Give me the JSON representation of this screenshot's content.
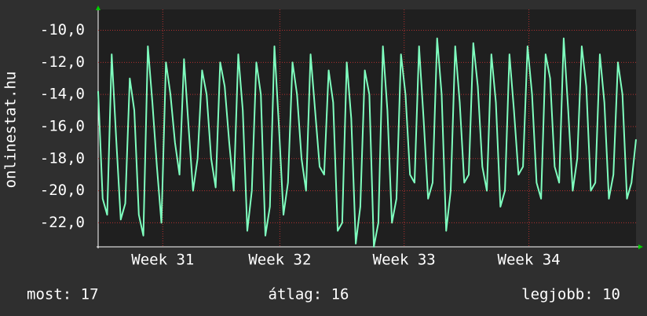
{
  "chart_data": {
    "type": "line",
    "ylabel": "onlinestat.hu",
    "color": "#7fffbf",
    "grid": true,
    "ylim": [
      -23.5,
      -8.7
    ],
    "yticks": [
      {
        "value": -10,
        "label": "-10,0"
      },
      {
        "value": -12,
        "label": "-12,0"
      },
      {
        "value": -14,
        "label": "-14,0"
      },
      {
        "value": -16,
        "label": "-16,0"
      },
      {
        "value": -18,
        "label": "-18,0"
      },
      {
        "value": -20,
        "label": "-20,0"
      },
      {
        "value": -22,
        "label": "-22,0"
      }
    ],
    "xlim": [
      0,
      119
    ],
    "xticks": [
      {
        "value": 14.3,
        "label": "Week 31"
      },
      {
        "value": 40.2,
        "label": "Week 32"
      },
      {
        "value": 67.7,
        "label": "Week 33"
      },
      {
        "value": 95.3,
        "label": "Week 34"
      }
    ],
    "values": [
      -13.8,
      -20.5,
      -21.5,
      -11.5,
      -16.8,
      -21.8,
      -20.8,
      -13.0,
      -15.0,
      -21.5,
      -22.8,
      -11.0,
      -14.5,
      -18.5,
      -22.0,
      -12.0,
      -14.0,
      -17.0,
      -19.0,
      -11.8,
      -16.0,
      -20.0,
      -18.0,
      -12.5,
      -14.0,
      -18.0,
      -19.8,
      -12.0,
      -13.5,
      -17.0,
      -20.0,
      -11.5,
      -15.0,
      -22.5,
      -20.0,
      -12.0,
      -14.0,
      -22.8,
      -21.0,
      -11.0,
      -16.0,
      -21.5,
      -19.5,
      -12.0,
      -14.0,
      -18.0,
      -20.0,
      -11.5,
      -15.0,
      -18.5,
      -19.0,
      -12.5,
      -14.5,
      -22.5,
      -22.0,
      -12.0,
      -15.5,
      -23.3,
      -21.0,
      -12.5,
      -14.0,
      -23.5,
      -22.0,
      -11.0,
      -15.0,
      -22.0,
      -20.5,
      -11.5,
      -14.0,
      -19.0,
      -19.5,
      -11.0,
      -15.5,
      -20.5,
      -19.5,
      -10.5,
      -14.0,
      -22.5,
      -20.0,
      -11.0,
      -14.5,
      -19.5,
      -19.0,
      -10.8,
      -13.5,
      -18.5,
      -20.0,
      -11.5,
      -14.5,
      -21.0,
      -20.0,
      -11.5,
      -15.0,
      -19.0,
      -18.5,
      -11.0,
      -14.0,
      -19.5,
      -20.5,
      -11.5,
      -13.0,
      -18.5,
      -19.5,
      -10.5,
      -15.0,
      -20.0,
      -18.0,
      -11.0,
      -13.5,
      -20.0,
      -19.5,
      -11.5,
      -14.5,
      -20.5,
      -19.0,
      -12.0,
      -14.0,
      -20.5,
      -19.5,
      -16.8
    ],
    "footer": [
      "most: 17",
      "átlag: 16",
      "legjobb: 10"
    ]
  }
}
